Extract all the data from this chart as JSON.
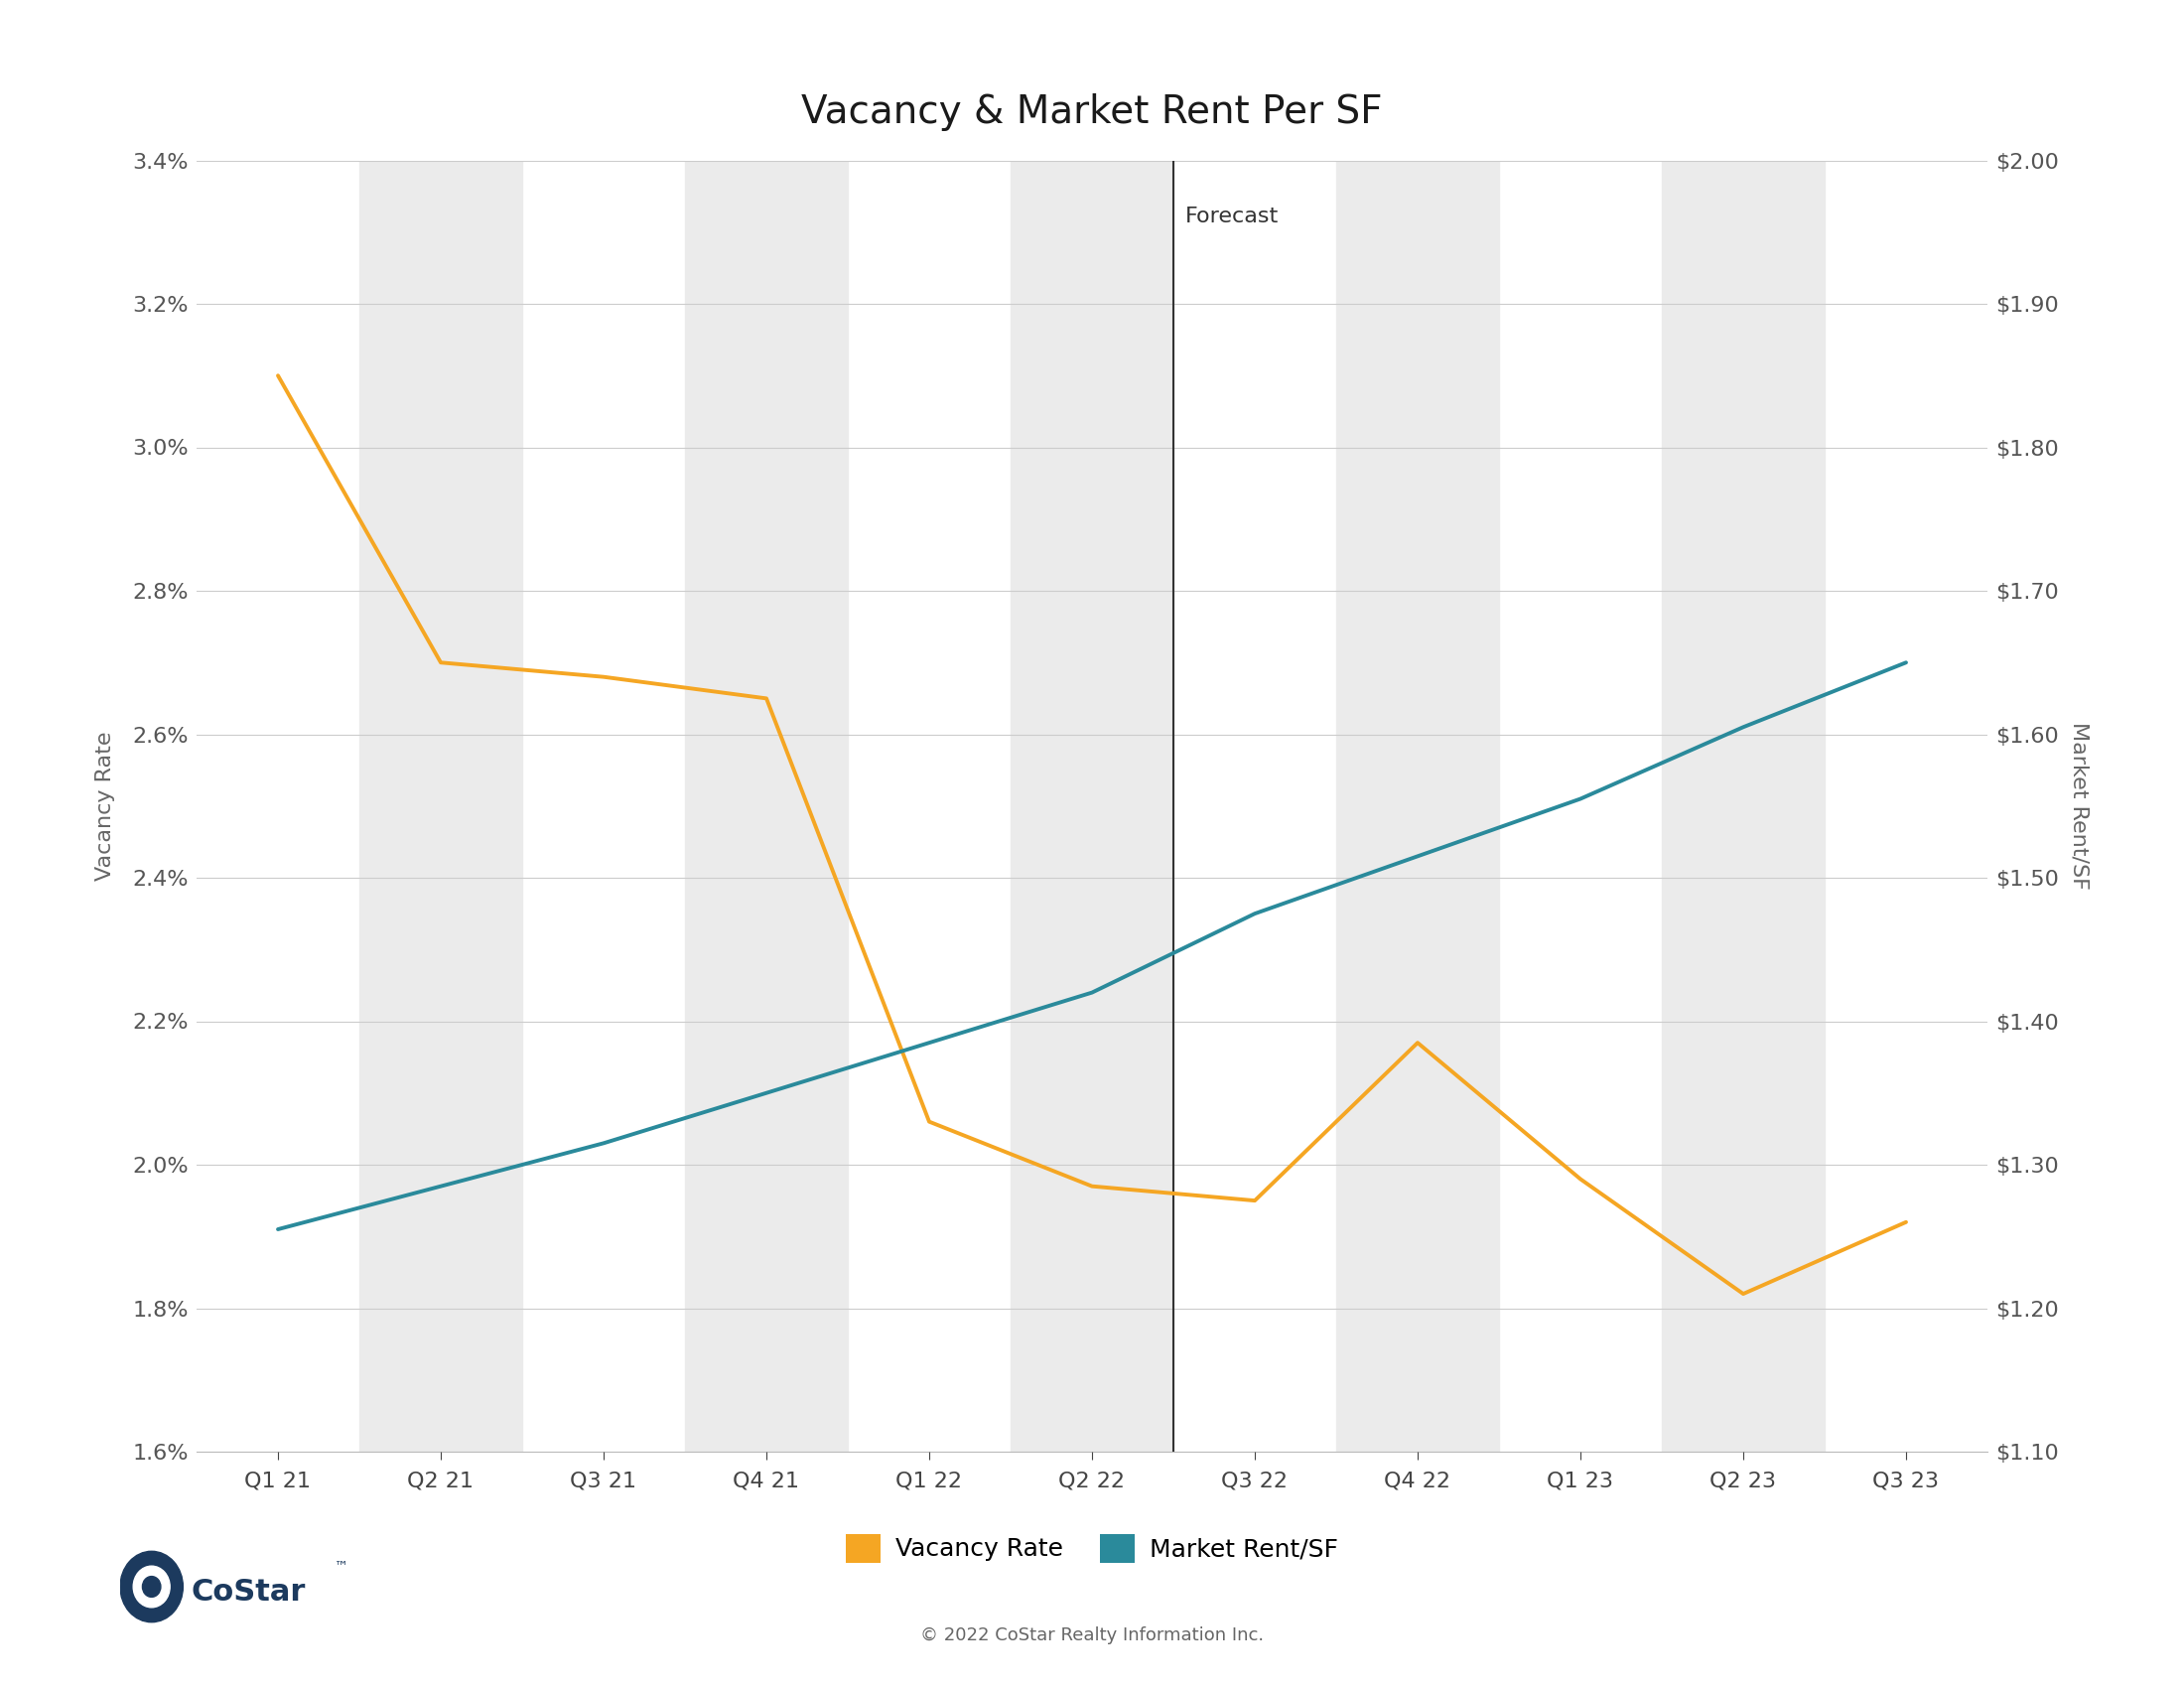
{
  "title": "Vacancy & Market Rent Per SF",
  "ylabel_left": "Vacancy Rate",
  "ylabel_right": "Market Rent/SF",
  "categories": [
    "Q1 21",
    "Q2 21",
    "Q3 21",
    "Q4 21",
    "Q1 22",
    "Q2 22",
    "Q3 22",
    "Q4 22",
    "Q1 23",
    "Q2 23",
    "Q3 23"
  ],
  "vacancy_rate": [
    0.031,
    0.027,
    0.0268,
    0.0265,
    0.0206,
    0.0197,
    0.0195,
    0.0217,
    0.0198,
    0.0182,
    0.0192
  ],
  "market_rent": [
    1.255,
    1.285,
    1.315,
    1.35,
    1.385,
    1.42,
    1.475,
    1.515,
    1.555,
    1.605,
    1.65
  ],
  "forecast_index": 6,
  "forecast_label": "Forecast",
  "ylim_left": [
    0.016,
    0.034
  ],
  "ylim_right": [
    1.1,
    2.0
  ],
  "yticks_left": [
    0.016,
    0.018,
    0.02,
    0.022,
    0.024,
    0.026,
    0.028,
    0.03,
    0.032,
    0.034
  ],
  "yticks_right": [
    1.1,
    1.2,
    1.3,
    1.4,
    1.5,
    1.6,
    1.7,
    1.8,
    1.9,
    2.0
  ],
  "vacancy_color": "#F5A623",
  "rent_color": "#2A8A9B",
  "background_color": "#FFFFFF",
  "shading_color": "#EBEBEB",
  "grid_color": "#CCCCCC",
  "title_fontsize": 28,
  "axis_label_fontsize": 16,
  "tick_fontsize": 16,
  "legend_fontsize": 18,
  "footer_text": "© 2022 CoStar Realty Information Inc.",
  "line_width": 2.8,
  "shaded_indices": [
    1,
    3,
    5,
    7,
    9
  ]
}
